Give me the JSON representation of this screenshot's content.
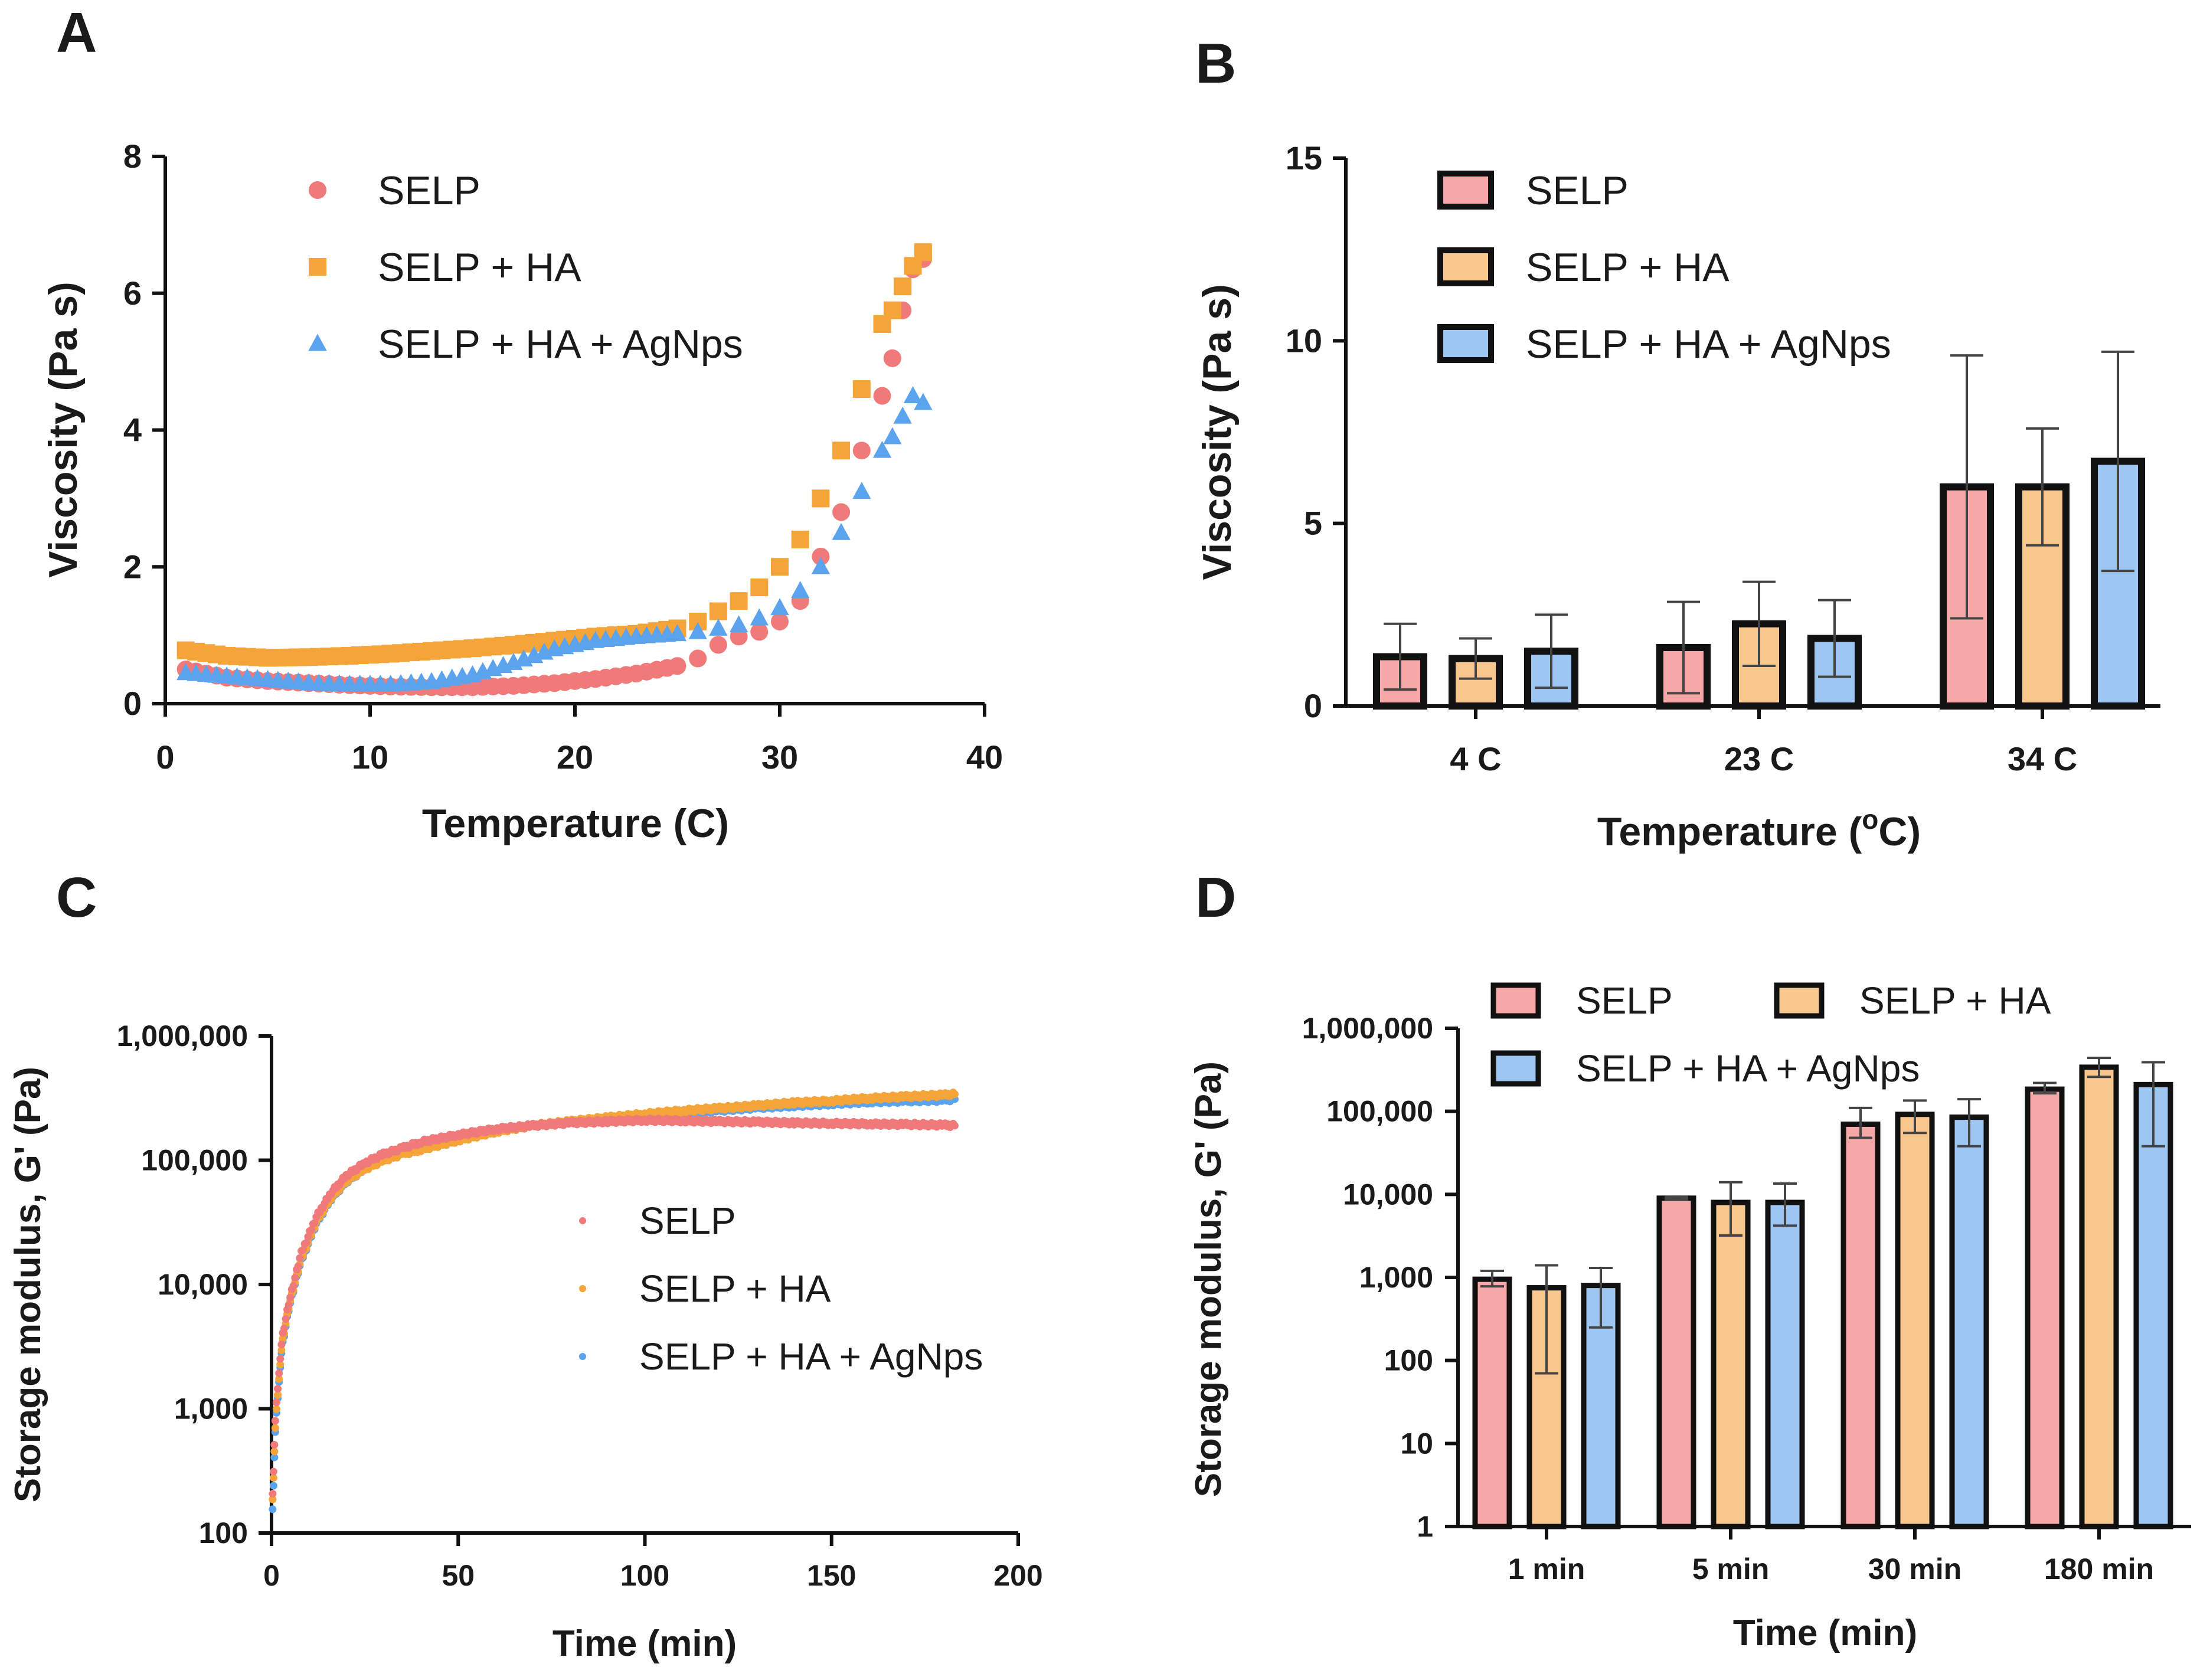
{
  "colors": {
    "SELP": "#F07A7A",
    "SELP + HA": "#F5A43A",
    "SELP + HA + AgNps": "#5CA3EE",
    "bar_SELP": "#F6A8A8",
    "bar_SELP + HA": "#F8C78E",
    "bar_SELP + HA + AgNps": "#9DC7F2"
  },
  "chart_data": [
    {
      "panel": "A",
      "type": "scatter",
      "title": "",
      "xlabel": "Temperature (C)",
      "ylabel": "Viscosity (Pa s)",
      "xlim": [
        0,
        40
      ],
      "ylim": [
        0,
        8
      ],
      "xticks": [
        "0",
        "10",
        "20",
        "30",
        "40"
      ],
      "yticks": [
        "0",
        "2",
        "4",
        "6",
        "8"
      ],
      "legend": [
        "SELP",
        "SELP + HA",
        "SELP + HA + AgNps"
      ],
      "series": [
        {
          "name": "SELP",
          "marker": "circle",
          "x": [
            1,
            3,
            5,
            7,
            9,
            11,
            13,
            15,
            17,
            19,
            21,
            23,
            25,
            26,
            27,
            28,
            29,
            30,
            31,
            32,
            33,
            34,
            35,
            35.5,
            36,
            36.5,
            37
          ],
          "y": [
            0.5,
            0.38,
            0.33,
            0.3,
            0.27,
            0.25,
            0.24,
            0.24,
            0.26,
            0.3,
            0.36,
            0.44,
            0.55,
            0.66,
            0.86,
            0.98,
            1.05,
            1.2,
            1.5,
            2.15,
            2.8,
            3.7,
            4.5,
            5.05,
            5.75,
            6.35,
            6.5
          ]
        },
        {
          "name": "SELP + HA",
          "marker": "square",
          "x": [
            1,
            3,
            5,
            7,
            9,
            11,
            13,
            15,
            17,
            19,
            21,
            23,
            25,
            26,
            27,
            28,
            29,
            30,
            31,
            32,
            33,
            34,
            35,
            35.5,
            36,
            36.5,
            37
          ],
          "y": [
            0.78,
            0.7,
            0.67,
            0.68,
            0.7,
            0.73,
            0.77,
            0.81,
            0.86,
            0.92,
            0.98,
            1.02,
            1.1,
            1.2,
            1.35,
            1.5,
            1.7,
            2.0,
            2.4,
            3.0,
            3.7,
            4.6,
            5.55,
            5.75,
            6.1,
            6.4,
            6.6
          ]
        },
        {
          "name": "SELP + HA + AgNps",
          "marker": "triangle",
          "x": [
            1,
            3,
            5,
            7,
            9,
            11,
            13,
            15,
            17,
            19,
            21,
            23,
            25,
            26,
            27,
            28,
            29,
            30,
            31,
            32,
            33,
            34,
            35,
            35.5,
            36,
            36.5,
            37
          ],
          "y": [
            0.45,
            0.4,
            0.35,
            0.3,
            0.28,
            0.28,
            0.32,
            0.42,
            0.6,
            0.8,
            0.92,
            0.98,
            1.02,
            1.05,
            1.1,
            1.15,
            1.25,
            1.4,
            1.65,
            2.0,
            2.5,
            3.1,
            3.7,
            3.9,
            4.2,
            4.5,
            4.4
          ]
        }
      ]
    },
    {
      "panel": "B",
      "type": "bar",
      "title": "",
      "xlabel": "Temperature (",
      "xlabel_sup": "o",
      "xlabel_end": "C)",
      "ylabel": "Viscosity (Pa s)",
      "ylim": [
        0,
        15
      ],
      "yticks": [
        "0",
        "5",
        "10",
        "15"
      ],
      "categories": [
        "4 C",
        "23 C",
        "34 C"
      ],
      "legend": [
        "SELP",
        "SELP + HA",
        "SELP + HA + AgNps"
      ],
      "series": [
        {
          "name": "SELP",
          "values": [
            1.35,
            1.6,
            6.0
          ],
          "errors": [
            0.9,
            1.25,
            3.6
          ]
        },
        {
          "name": "SELP + HA",
          "values": [
            1.3,
            2.25,
            6.0
          ],
          "errors": [
            0.55,
            1.15,
            1.6
          ]
        },
        {
          "name": "SELP + HA + AgNps",
          "values": [
            1.5,
            1.85,
            6.7
          ],
          "errors": [
            1.0,
            1.05,
            3.0
          ]
        }
      ]
    },
    {
      "panel": "C",
      "type": "scatter",
      "title": "",
      "xlabel": "Time (min)",
      "ylabel": "Storage modulus, G' (Pa)",
      "yscale": "log",
      "xlim": [
        0,
        200
      ],
      "ylim": [
        100,
        1000000
      ],
      "xticks": [
        "0",
        "50",
        "100",
        "150",
        "200"
      ],
      "yticks": [
        "100",
        "1,000",
        "10,000",
        "100,000",
        "1,000,000"
      ],
      "legend": [
        "SELP",
        "SELP + HA",
        "SELP + HA + AgNps"
      ],
      "series": [
        {
          "name": "SELP",
          "x": [
            0.3,
            1,
            2,
            3,
            5,
            8,
            12,
            16,
            20,
            25,
            30,
            35,
            40,
            50,
            60,
            70,
            80,
            90,
            100,
            110,
            120,
            130,
            140,
            150,
            160,
            170,
            180,
            183
          ],
          "y": [
            200,
            800,
            2000,
            4000,
            8000,
            18000,
            35000,
            55000,
            75000,
            95000,
            112000,
            125000,
            140000,
            160000,
            178000,
            190000,
            200000,
            205000,
            210000,
            208000,
            205000,
            203000,
            200000,
            198000,
            196000,
            194000,
            192000,
            190000
          ]
        },
        {
          "name": "SELP + HA",
          "x": [
            0.3,
            1,
            2,
            3,
            5,
            8,
            12,
            16,
            20,
            25,
            30,
            35,
            40,
            50,
            60,
            70,
            80,
            90,
            100,
            110,
            120,
            130,
            140,
            150,
            160,
            170,
            180,
            183
          ],
          "y": [
            180,
            700,
            1800,
            3600,
            7500,
            16000,
            32000,
            50000,
            68000,
            85000,
            100000,
            112000,
            122000,
            145000,
            170000,
            190000,
            205000,
            220000,
            235000,
            250000,
            262000,
            275000,
            290000,
            300000,
            315000,
            325000,
            335000,
            340000
          ]
        },
        {
          "name": "SELP + HA + AgNps",
          "x": [
            0.3,
            1,
            2,
            3,
            5,
            8,
            12,
            16,
            20,
            25,
            30,
            35,
            40,
            50,
            60,
            70,
            80,
            90,
            100,
            110,
            120,
            130,
            140,
            150,
            160,
            170,
            180,
            183
          ],
          "y": [
            150,
            650,
            1700,
            3400,
            7200,
            15500,
            31000,
            49000,
            67000,
            85000,
            102000,
            115000,
            126000,
            148000,
            172000,
            190000,
            202000,
            214000,
            225000,
            240000,
            252000,
            265000,
            275000,
            285000,
            295000,
            300000,
            305000,
            310000
          ]
        }
      ]
    },
    {
      "panel": "D",
      "type": "bar",
      "title": "",
      "xlabel": "Time (min)",
      "ylabel": "Storage modulus, G' (Pa)",
      "yscale": "log",
      "ylim": [
        1,
        1000000
      ],
      "yticks": [
        "1",
        "10",
        "100",
        "1,000",
        "10,000",
        "100,000",
        "1,000,000"
      ],
      "categories": [
        "1 min",
        "5 min",
        "30 min",
        "180 min"
      ],
      "legend": [
        "SELP",
        "SELP + HA",
        "SELP + HA + AgNps"
      ],
      "series": [
        {
          "name": "SELP",
          "values": [
            950,
            9000,
            70000,
            185000
          ],
          "err_low": [
            780,
            8700,
            48000,
            165000
          ],
          "err_high": [
            1200,
            9300,
            110000,
            220000
          ]
        },
        {
          "name": "SELP + HA",
          "values": [
            750,
            8000,
            92000,
            340000
          ],
          "err_low": [
            70,
            3200,
            55000,
            260000
          ],
          "err_high": [
            1400,
            14000,
            135000,
            440000
          ]
        },
        {
          "name": "SELP + HA + AgNps",
          "values": [
            800,
            8000,
            85000,
            210000
          ],
          "err_low": [
            250,
            4200,
            38000,
            38000
          ],
          "err_high": [
            1300,
            13500,
            140000,
            390000
          ]
        }
      ]
    }
  ]
}
